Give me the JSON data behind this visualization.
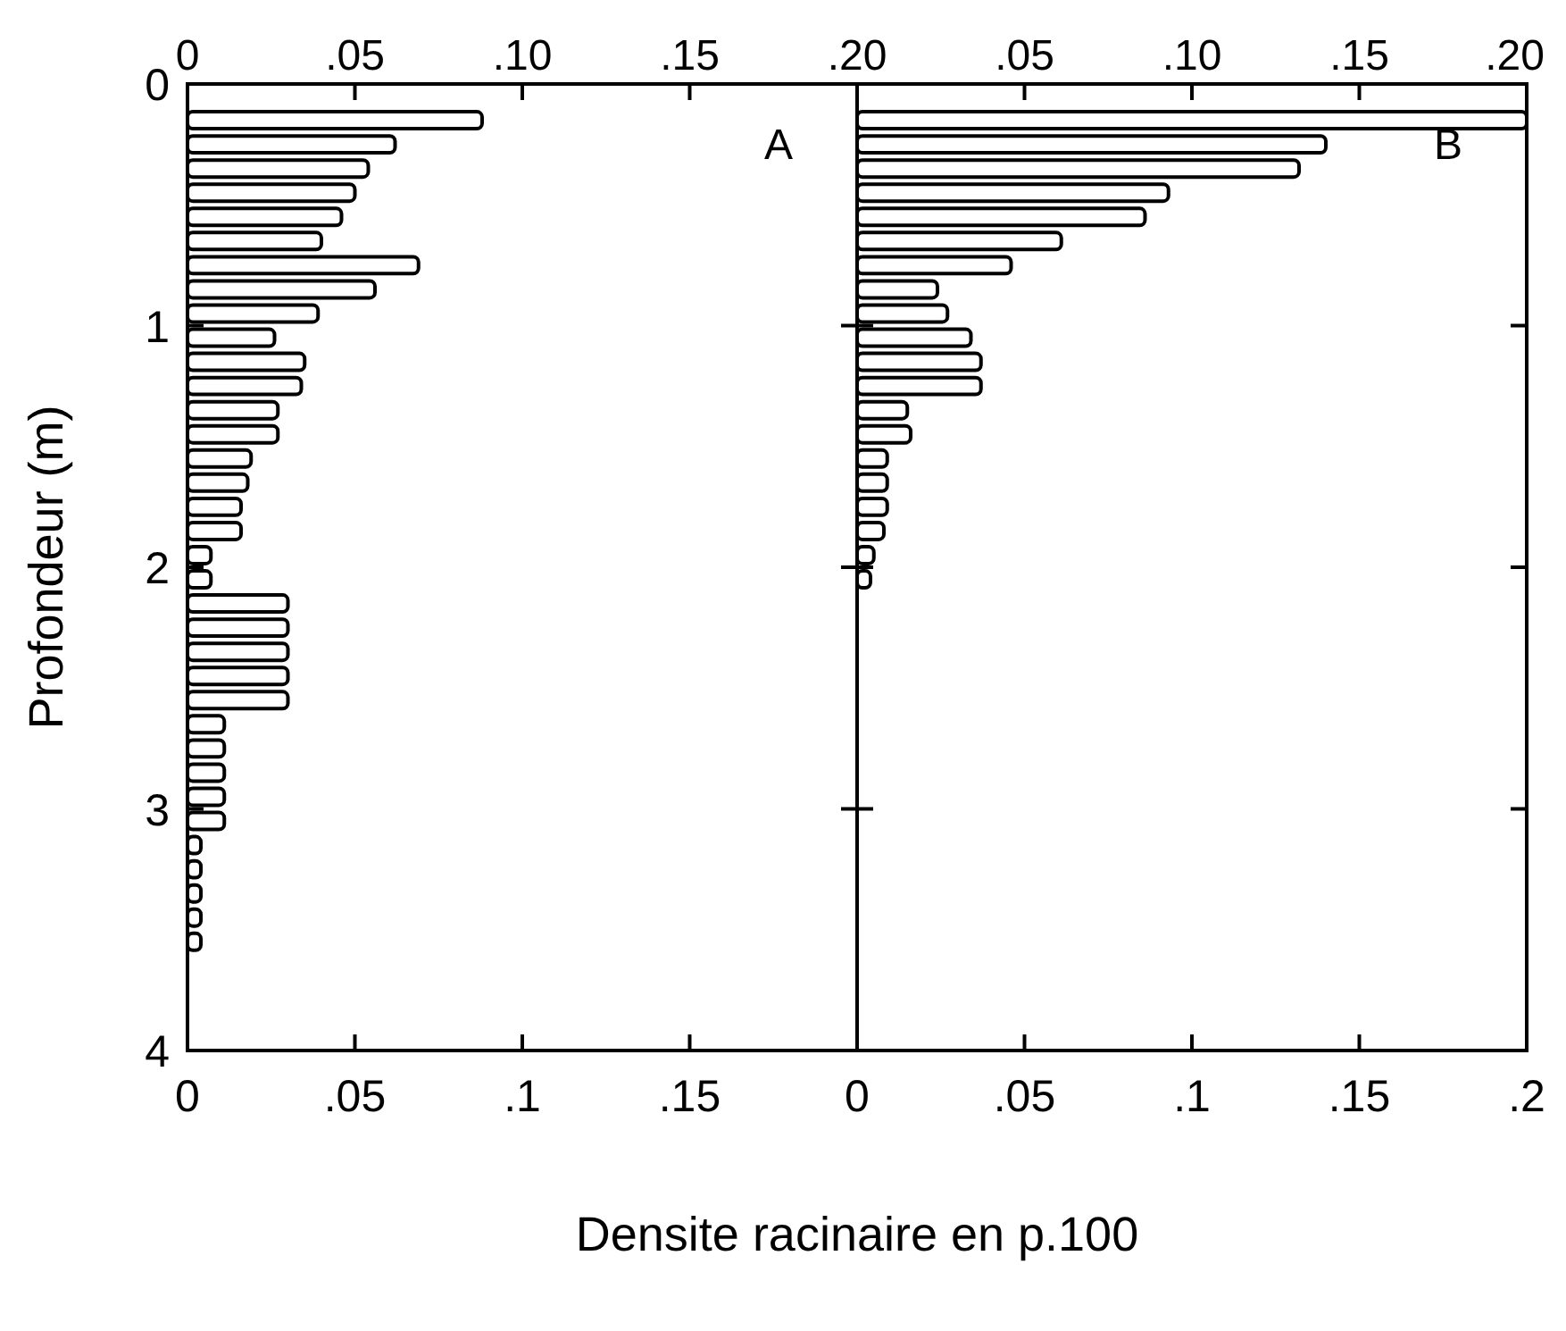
{
  "chart_data": [
    {
      "type": "bar",
      "orientation": "horizontal",
      "color": "#ffffff",
      "x": [
        0.15,
        0.25,
        0.35,
        0.45,
        0.55,
        0.65,
        0.75,
        0.85,
        0.95,
        1.05,
        1.15,
        1.25,
        1.35,
        1.45,
        1.55,
        1.65,
        1.75,
        1.85,
        1.95,
        2.05,
        2.15,
        2.25,
        2.35,
        2.45,
        2.55,
        2.65,
        2.75,
        2.85,
        2.95,
        3.05,
        3.15,
        3.25,
        3.35,
        3.45,
        3.55
      ],
      "values": [
        0.088,
        0.062,
        0.054,
        0.05,
        0.046,
        0.04,
        0.069,
        0.056,
        0.039,
        0.026,
        0.035,
        0.034,
        0.027,
        0.027,
        0.019,
        0.018,
        0.016,
        0.016,
        0.007,
        0.007,
        0.03,
        0.03,
        0.03,
        0.03,
        0.03,
        0.011,
        0.011,
        0.011,
        0.011,
        0.011,
        0.004,
        0.004,
        0.004,
        0.004,
        0.004
      ],
      "xlim": [
        0,
        0.2
      ],
      "xticks": [
        {
          "value": 0,
          "label": "0"
        },
        {
          "value": 0.05,
          "label": ".05"
        },
        {
          "value": 0.1,
          "label": ".1"
        },
        {
          "value": 0.15,
          "label": ".15"
        },
        {
          "value": 0.2,
          "label": null
        }
      ],
      "x2lim": [
        0,
        0.2
      ],
      "x2ticks": [
        {
          "value": 0,
          "label": "0"
        },
        {
          "value": 0.05,
          "label": ".05"
        },
        {
          "value": 0.1,
          "label": ".10"
        },
        {
          "value": 0.15,
          "label": ".15"
        },
        {
          "value": 0.2,
          "label": ".20"
        }
      ],
      "ylim": [
        4,
        0
      ],
      "yticks": [
        0,
        1,
        2,
        3,
        4
      ],
      "ylabel": "Profondeur (m)",
      "xlabel": "Densite racinaire en p.100",
      "annotations": [
        "A"
      ]
    },
    {
      "type": "bar",
      "orientation": "horizontal",
      "color": "#ffffff",
      "x": [
        0.15,
        0.25,
        0.35,
        0.45,
        0.55,
        0.65,
        0.75,
        0.85,
        0.95,
        1.05,
        1.15,
        1.25,
        1.35,
        1.45,
        1.55,
        1.65,
        1.75,
        1.85,
        1.95,
        2.05
      ],
      "values": [
        0.2,
        0.14,
        0.132,
        0.093,
        0.086,
        0.061,
        0.046,
        0.024,
        0.027,
        0.034,
        0.037,
        0.037,
        0.015,
        0.016,
        0.009,
        0.009,
        0.009,
        0.008,
        0.005,
        0.004
      ],
      "xlim": [
        0,
        0.2
      ],
      "xticks": [
        {
          "value": 0,
          "label": "0"
        },
        {
          "value": 0.05,
          "label": ".05"
        },
        {
          "value": 0.1,
          "label": ".1"
        },
        {
          "value": 0.15,
          "label": ".15"
        },
        {
          "value": 0.2,
          "label": ".2"
        }
      ],
      "x2lim": [
        0,
        0.2
      ],
      "x2ticks": [
        {
          "value": 0,
          "label": null
        },
        {
          "value": 0.05,
          "label": ".05"
        },
        {
          "value": 0.1,
          "label": ".10"
        },
        {
          "value": 0.15,
          "label": ".15"
        },
        {
          "value": 0.2,
          "label": ".20"
        }
      ],
      "ylim": [
        4,
        0
      ],
      "yticks": [
        0,
        1,
        2,
        3,
        4
      ],
      "tick_labels": "x",
      "annotations": [
        "B"
      ]
    }
  ]
}
